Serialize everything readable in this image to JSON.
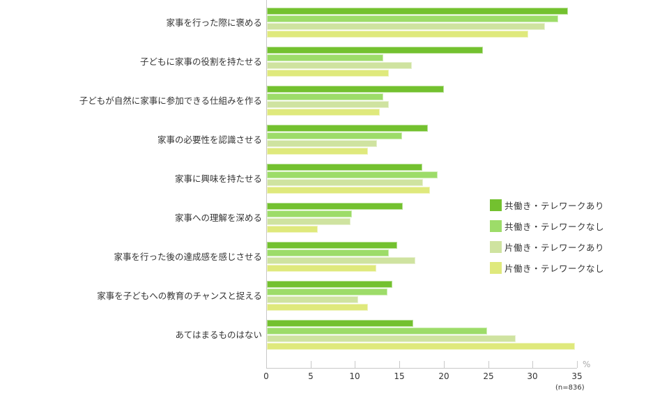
{
  "chart_data": {
    "type": "bar",
    "orientation": "horizontal",
    "title": "",
    "xlabel": "%",
    "ylabel": "",
    "xlim": [
      0,
      35
    ],
    "x_ticks": [
      "0",
      "5",
      "10",
      "15",
      "20",
      "25",
      "30",
      "35"
    ],
    "unit": "%",
    "note": "(n=836)",
    "grid": false,
    "legend_position": "right",
    "categories": [
      "家事を行った際に褒める",
      "子どもに家事の役割を持たせる",
      "子どもが自然に家事に参加できる仕組みを作る",
      "家事の必要性を認識させる",
      "家事に興味を持たせる",
      "家事への理解を深める",
      "家事を行った後の達成感を感じさせる",
      "家事を子どもへの教育のチャンスと捉える",
      "あてはまるものはない"
    ],
    "series": [
      {
        "name": "共働き・テレワークあり",
        "color": "#73c12f",
        "values": [
          33.9,
          24.3,
          19.9,
          18.1,
          17.5,
          15.3,
          14.7,
          14.1,
          16.5
        ]
      },
      {
        "name": "共働き・テレワークなし",
        "color": "#9ddc69",
        "values": [
          32.8,
          13.1,
          13.1,
          15.2,
          19.2,
          9.6,
          13.7,
          13.6,
          24.8
        ]
      },
      {
        "name": "片働き・テレワークあり",
        "color": "#cfe3a0",
        "values": [
          31.3,
          16.3,
          13.7,
          12.4,
          17.6,
          9.4,
          16.7,
          10.3,
          28.0
        ]
      },
      {
        "name": "片働き・テレワークなし",
        "color": "#dfe97c",
        "values": [
          29.4,
          13.7,
          12.7,
          11.4,
          18.4,
          5.7,
          12.3,
          11.4,
          34.7
        ]
      }
    ]
  }
}
